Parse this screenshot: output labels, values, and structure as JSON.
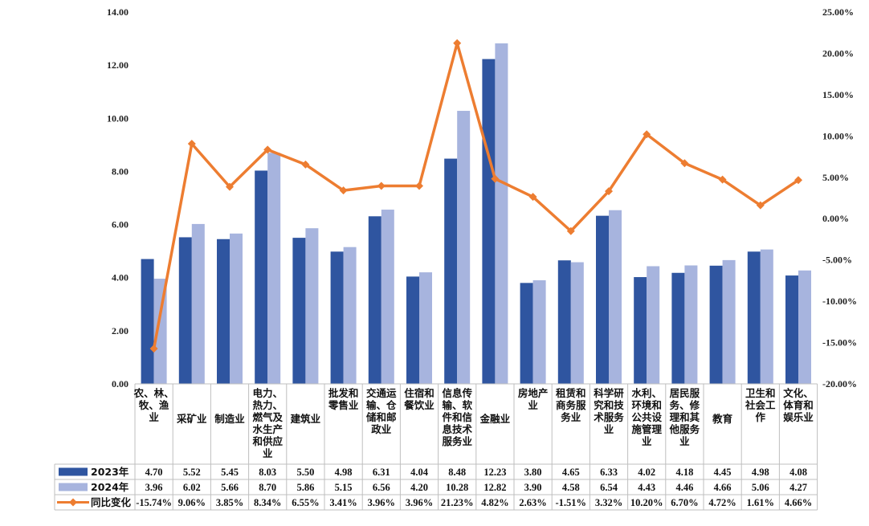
{
  "chart_data": {
    "type": "bar",
    "categories": [
      "农、林、牧、渔业",
      "采矿业",
      "制造业",
      "电力、热力、燃气及水生产和供应业",
      "建筑业",
      "批发和零售业",
      "交通运输、仓储和邮政业",
      "住宿和餐饮业",
      "信息传输、软件和信息技术服务业",
      "金融业",
      "房地产业",
      "租赁和商务服务业",
      "科学研究和技术服务业",
      "水利、环境和公共设施管理业",
      "居民服务、修理和其他服务业",
      "教育",
      "卫生和社会工作",
      "文化、体育和娱乐业"
    ],
    "category_lines": [
      [
        "农、林、",
        "牧、渔",
        "业"
      ],
      [
        "采矿业"
      ],
      [
        "制造业"
      ],
      [
        "电力、",
        "热力、",
        "燃气及",
        "水生产",
        "和供应",
        "业"
      ],
      [
        "建筑业"
      ],
      [
        "批发和",
        "零售业"
      ],
      [
        "交通运",
        "输、仓",
        "储和邮",
        "政业"
      ],
      [
        "住宿和",
        "餐饮业"
      ],
      [
        "信息传",
        "输、软",
        "件和信",
        "息技术",
        "服务业"
      ],
      [
        "金融业"
      ],
      [
        "房地产",
        "业"
      ],
      [
        "租赁和",
        "商务服",
        "务业"
      ],
      [
        "科学研",
        "究和技",
        "术服务",
        "业"
      ],
      [
        "水利、",
        "环境和",
        "公共设",
        "施管理",
        "业"
      ],
      [
        "居民服",
        "务、修",
        "理和其",
        "他服务",
        "业"
      ],
      [
        "教育"
      ],
      [
        "卫生和",
        "社会工",
        "作"
      ],
      [
        "文化、",
        "体育和",
        "娱乐业"
      ]
    ],
    "series": [
      {
        "name": "2023年",
        "type": "bar",
        "axis": "left",
        "color": "#2f55a0",
        "values": [
          4.7,
          5.52,
          5.45,
          8.03,
          5.5,
          4.98,
          6.31,
          4.04,
          8.48,
          12.23,
          3.8,
          4.65,
          6.33,
          4.02,
          4.18,
          4.45,
          4.98,
          4.08
        ],
        "labels": [
          "4.70",
          "5.52",
          "5.45",
          "8.03",
          "5.50",
          "4.98",
          "6.31",
          "4.04",
          "8.48",
          "12.23",
          "3.80",
          "4.65",
          "6.33",
          "4.02",
          "4.18",
          "4.45",
          "4.98",
          "4.08"
        ]
      },
      {
        "name": "2024年",
        "type": "bar",
        "axis": "left",
        "color": "#a7b4de",
        "values": [
          3.96,
          6.02,
          5.66,
          8.7,
          5.86,
          5.15,
          6.56,
          4.2,
          10.28,
          12.82,
          3.9,
          4.58,
          6.54,
          4.43,
          4.46,
          4.66,
          5.06,
          4.27
        ],
        "labels": [
          "3.96",
          "6.02",
          "5.66",
          "8.70",
          "5.86",
          "5.15",
          "6.56",
          "4.20",
          "10.28",
          "12.82",
          "3.90",
          "4.58",
          "6.54",
          "4.43",
          "4.46",
          "4.66",
          "5.06",
          "4.27"
        ]
      },
      {
        "name": "同比变化",
        "type": "line",
        "axis": "right",
        "color": "#ed7d31",
        "values": [
          -15.74,
          9.06,
          3.85,
          8.34,
          6.55,
          3.41,
          3.96,
          3.96,
          21.23,
          4.82,
          2.63,
          -1.51,
          3.32,
          10.2,
          6.7,
          4.72,
          1.61,
          4.66
        ],
        "labels": [
          "-15.74%",
          "9.06%",
          "3.85%",
          "8.34%",
          "6.55%",
          "3.41%",
          "3.96%",
          "3.96%",
          "21.23%",
          "4.82%",
          "2.63%",
          "-1.51%",
          "3.32%",
          "10.20%",
          "6.70%",
          "4.72%",
          "1.61%",
          "4.66%"
        ]
      }
    ],
    "y_left": {
      "ylim": [
        0,
        14
      ],
      "ticks": [
        "0.00",
        "2.00",
        "4.00",
        "6.00",
        "8.00",
        "10.00",
        "12.00",
        "14.00"
      ]
    },
    "y_right": {
      "ylim": [
        -20,
        25
      ],
      "ticks": [
        "-20.00%",
        "-15.00%",
        "-10.00%",
        "-5.00%",
        "0.00%",
        "5.00%",
        "10.00%",
        "15.00%",
        "20.00%",
        "25.00%"
      ]
    },
    "grid": false,
    "legend": "data-table-left"
  }
}
